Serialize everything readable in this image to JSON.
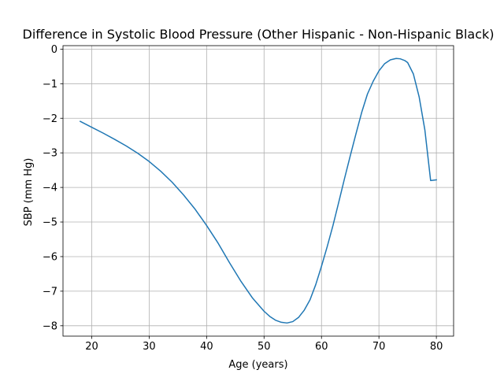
{
  "chart_data": {
    "type": "line",
    "title": "Difference in Systolic Blood Pressure (Other Hispanic - Non-Hispanic Black)",
    "xlabel": "Age (years)",
    "ylabel": "SBP (mm Hg)",
    "xlim": [
      15,
      83
    ],
    "ylim": [
      -8.3,
      0.1
    ],
    "xticks": [
      20,
      30,
      40,
      50,
      60,
      70,
      80
    ],
    "yticks": [
      0,
      -1,
      -2,
      -3,
      -4,
      -5,
      -6,
      -7,
      -8
    ],
    "grid": true,
    "series": [
      {
        "color": "#1f77b4",
        "x": [
          18,
          20,
          22,
          24,
          26,
          28,
          30,
          32,
          34,
          36,
          38,
          40,
          42,
          44,
          46,
          48,
          50,
          51,
          52,
          53,
          54,
          55,
          56,
          57,
          58,
          59,
          60,
          61,
          62,
          63,
          64,
          65,
          66,
          67,
          68,
          69,
          70,
          71,
          72,
          73,
          73.7,
          74.5,
          75,
          76,
          77,
          78,
          79,
          80
        ],
        "y": [
          -2.09,
          -2.26,
          -2.43,
          -2.61,
          -2.8,
          -3.01,
          -3.25,
          -3.53,
          -3.85,
          -4.22,
          -4.63,
          -5.1,
          -5.61,
          -6.18,
          -6.72,
          -7.2,
          -7.58,
          -7.73,
          -7.84,
          -7.9,
          -7.92,
          -7.88,
          -7.76,
          -7.55,
          -7.25,
          -6.81,
          -6.28,
          -5.71,
          -5.1,
          -4.43,
          -3.75,
          -3.09,
          -2.45,
          -1.83,
          -1.3,
          -0.93,
          -0.63,
          -0.42,
          -0.31,
          -0.27,
          -0.28,
          -0.33,
          -0.39,
          -0.72,
          -1.38,
          -2.34,
          -3.8,
          -3.78
        ]
      }
    ]
  }
}
